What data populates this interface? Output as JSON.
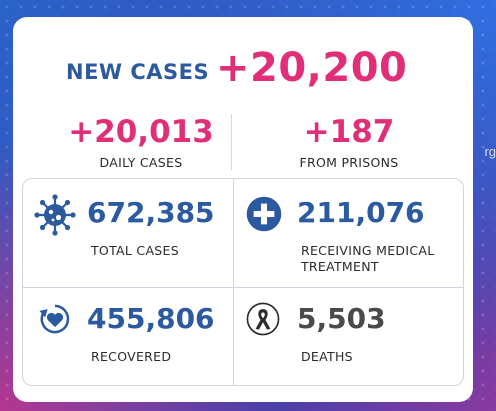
{
  "headline": {
    "label": "NEW CASES",
    "value": "+20,200"
  },
  "daily": {
    "value": "+20,013",
    "label": "DAILY CASES"
  },
  "prisons": {
    "value": "+187",
    "label": "FROM PRISONS"
  },
  "total": {
    "value": "672,385",
    "label": "TOTAL CASES",
    "icon": "virus-icon"
  },
  "medical": {
    "value": "211,076",
    "label_line1": "RECEIVING MEDICAL",
    "label_line2": "TREATMENT",
    "icon": "medical-cross-icon"
  },
  "recovered": {
    "value": "455,806",
    "label": "RECOVERED",
    "icon": "recovered-heart-icon"
  },
  "deaths": {
    "value": "5,503",
    "label": "DEATHS",
    "icon": "ribbon-icon"
  },
  "watermark": "rg",
  "colors": {
    "pink": "#e02f78",
    "blue": "#2c5aa0",
    "dark_gray": "#4a4a4a"
  }
}
